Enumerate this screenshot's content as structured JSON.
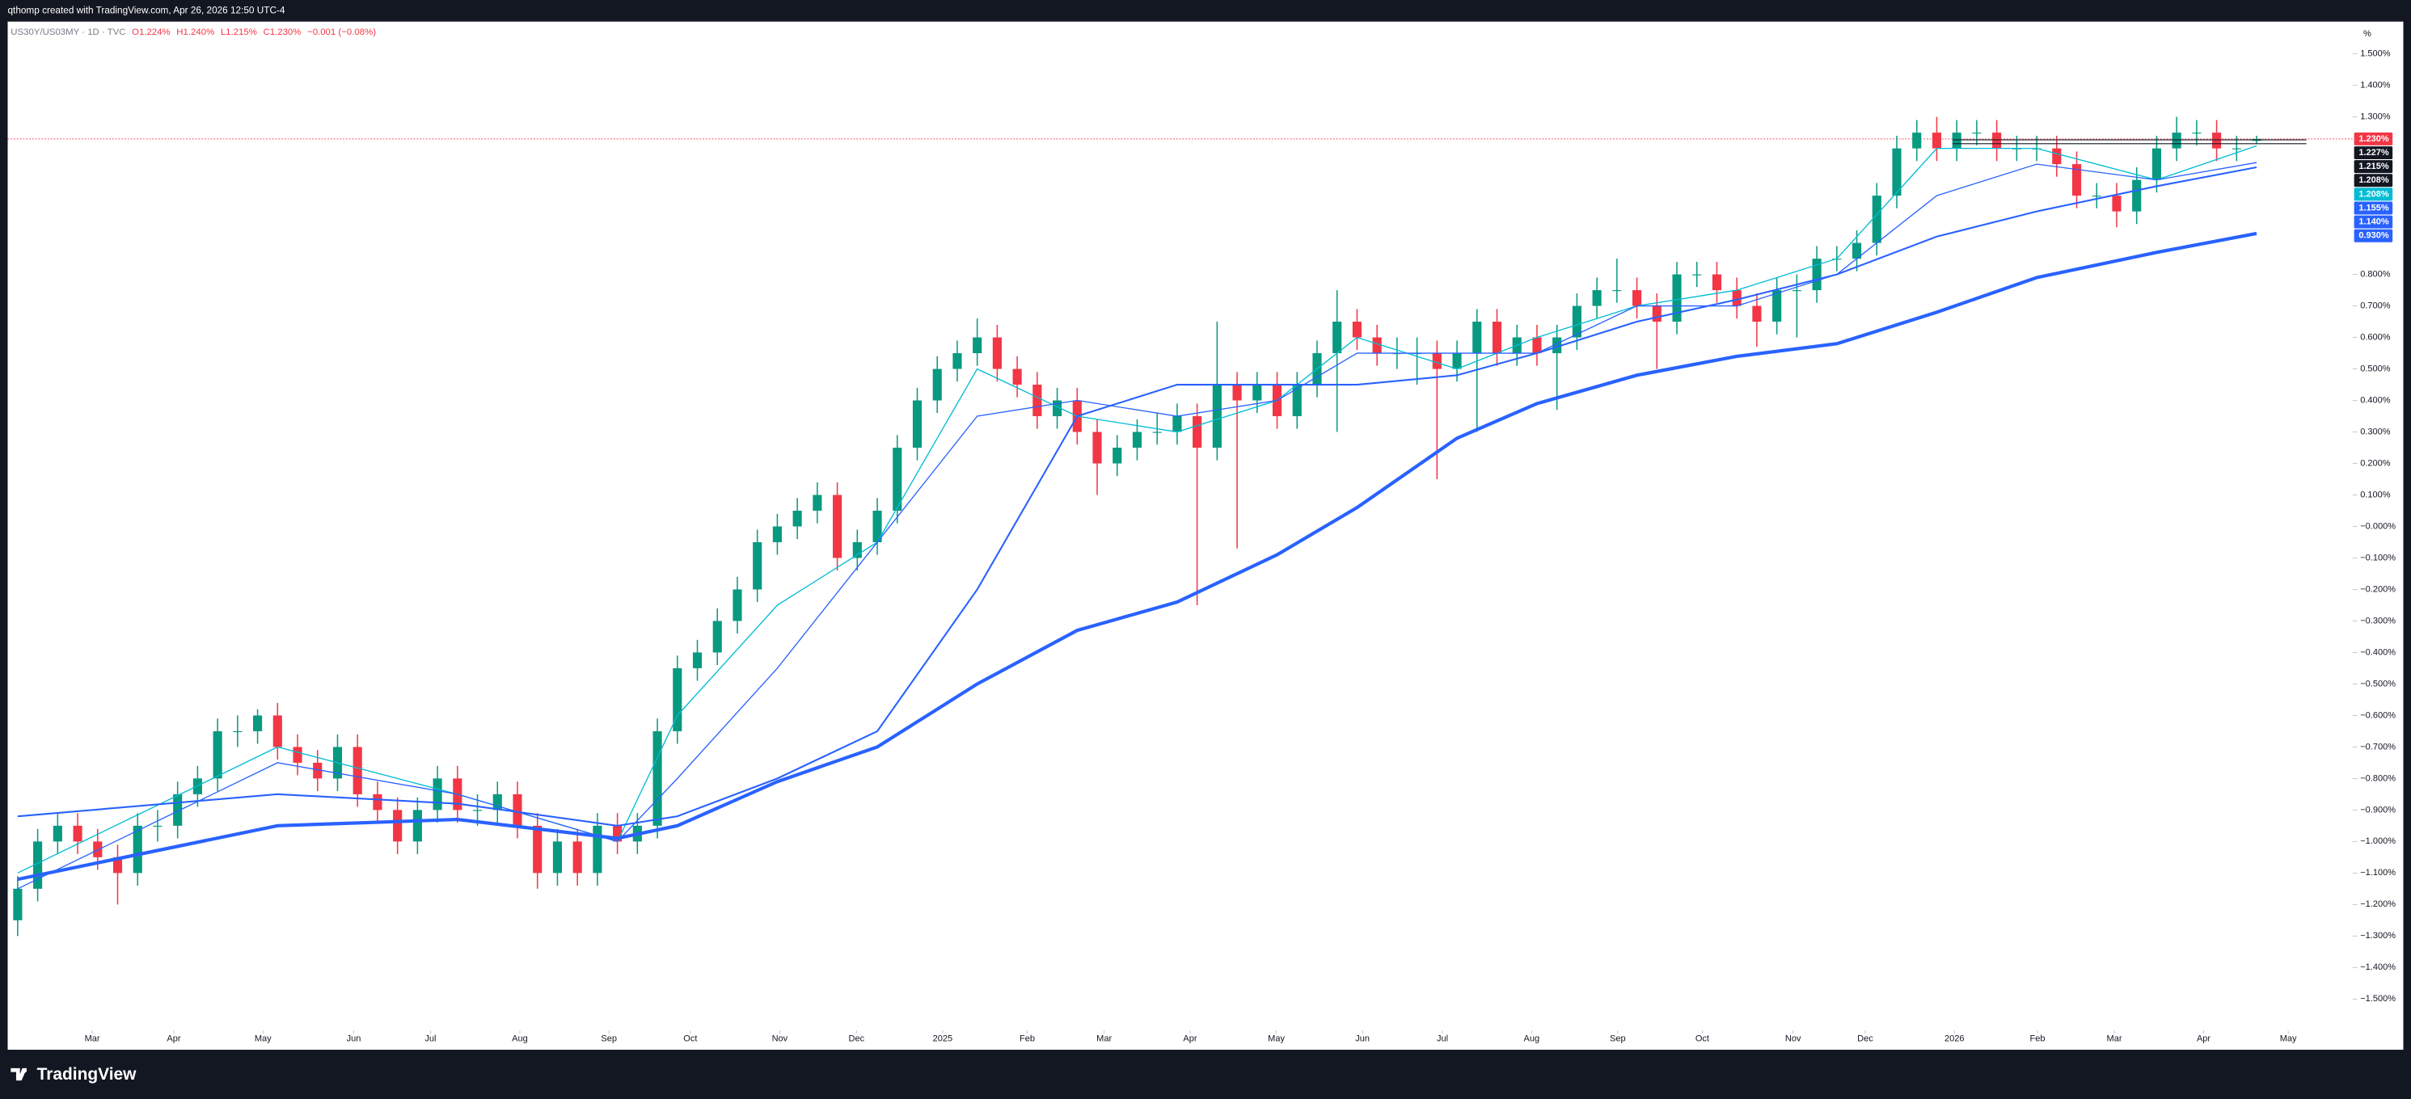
{
  "header": {
    "credit": "qthomp created with TradingView.com, Apr 26, 2026 12:50 UTC-4"
  },
  "footer": {
    "brand": "TradingView"
  },
  "chart_data": {
    "type": "candlestick",
    "symbol": "US30Y/US03MY · 1D · TVC",
    "legend_values": [
      "O1.224%",
      "H1.240%",
      "L1.215%",
      "C1.230%",
      "−0.001 (−0.08%)"
    ],
    "up_color": "#089981",
    "down_color": "#f23645",
    "y_unit": "%",
    "xlim": [
      0,
      117.3
    ],
    "xticks": [
      {
        "value": 4.23,
        "label": "Mar"
      },
      {
        "value": 8.31,
        "label": "Apr"
      },
      {
        "value": 12.77,
        "label": "May"
      },
      {
        "value": 17.31,
        "label": "Jun"
      },
      {
        "value": 21.15,
        "label": "Jul"
      },
      {
        "value": 25.62,
        "label": "Aug"
      },
      {
        "value": 30.08,
        "label": "Sep"
      },
      {
        "value": 34.15,
        "label": "Oct"
      },
      {
        "value": 38.62,
        "label": "Nov"
      },
      {
        "value": 42.46,
        "label": "Dec"
      },
      {
        "value": 46.77,
        "label": "2025"
      },
      {
        "value": 51.0,
        "label": "Feb"
      },
      {
        "value": 54.85,
        "label": "Mar"
      },
      {
        "value": 59.15,
        "label": "Apr"
      },
      {
        "value": 63.46,
        "label": "May"
      },
      {
        "value": 67.77,
        "label": "Jun"
      },
      {
        "value": 71.77,
        "label": "Jul"
      },
      {
        "value": 76.23,
        "label": "Aug"
      },
      {
        "value": 80.54,
        "label": "Sep"
      },
      {
        "value": 84.77,
        "label": "Oct"
      },
      {
        "value": 89.31,
        "label": "Nov"
      },
      {
        "value": 92.92,
        "label": "Dec"
      },
      {
        "value": 97.38,
        "label": "2026"
      },
      {
        "value": 101.54,
        "label": "Feb"
      },
      {
        "value": 105.38,
        "label": "Mar"
      },
      {
        "value": 109.85,
        "label": "Apr"
      },
      {
        "value": 114.08,
        "label": "May"
      }
    ],
    "ylim": [
      -1.6,
      1.6
    ],
    "yticks": [
      {
        "value": 1.5,
        "label": "1.500%"
      },
      {
        "value": 1.4,
        "label": "1.400%"
      },
      {
        "value": 1.3,
        "label": "1.300%"
      },
      {
        "value": 0.8,
        "label": "0.800%"
      },
      {
        "value": 0.7,
        "label": "0.700%"
      },
      {
        "value": 0.6,
        "label": "0.600%"
      },
      {
        "value": 0.5,
        "label": "0.500%"
      },
      {
        "value": 0.4,
        "label": "0.400%"
      },
      {
        "value": 0.3,
        "label": "0.300%"
      },
      {
        "value": 0.2,
        "label": "0.200%"
      },
      {
        "value": 0.1,
        "label": "0.100%"
      },
      {
        "value": 0,
        "label": "−0.000%"
      },
      {
        "value": -0.1,
        "label": "−0.100%"
      },
      {
        "value": -0.2,
        "label": "−0.200%"
      },
      {
        "value": -0.3,
        "label": "−0.300%"
      },
      {
        "value": -0.4,
        "label": "−0.400%"
      },
      {
        "value": -0.5,
        "label": "−0.500%"
      },
      {
        "value": -0.6,
        "label": "−0.600%"
      },
      {
        "value": -0.7,
        "label": "−0.700%"
      },
      {
        "value": -0.8,
        "label": "−0.800%"
      },
      {
        "value": -0.9,
        "label": "−0.900%"
      },
      {
        "value": -1.0,
        "label": "−1.000%"
      },
      {
        "value": -1.1,
        "label": "−1.100%"
      },
      {
        "value": -1.2,
        "label": "−1.200%"
      },
      {
        "value": -1.3,
        "label": "−1.300%"
      },
      {
        "value": -1.4,
        "label": "−1.400%"
      },
      {
        "value": -1.5,
        "label": "−1.500%"
      }
    ],
    "candles": [
      [
        -1.25,
        -1.11,
        -1.3,
        -1.15
      ],
      [
        -1.15,
        -0.96,
        -1.19,
        -1.0
      ],
      [
        -1.0,
        -0.91,
        -1.04,
        -0.95
      ],
      [
        -0.95,
        -0.91,
        -1.04,
        -1.0
      ],
      [
        -1.0,
        -0.96,
        -1.09,
        -1.05
      ],
      [
        -1.05,
        -1.01,
        -1.2,
        -1.1
      ],
      [
        -1.1,
        -0.91,
        -1.14,
        -0.95
      ],
      [
        -0.95,
        -0.9,
        -1.0,
        -0.95
      ],
      [
        -0.95,
        -0.81,
        -0.99,
        -0.85
      ],
      [
        -0.85,
        -0.76,
        -0.89,
        -0.8
      ],
      [
        -0.8,
        -0.61,
        -0.84,
        -0.65
      ],
      [
        -0.65,
        -0.6,
        -0.7,
        -0.65
      ],
      [
        -0.65,
        -0.58,
        -0.69,
        -0.6
      ],
      [
        -0.6,
        -0.56,
        -0.74,
        -0.7
      ],
      [
        -0.7,
        -0.66,
        -0.79,
        -0.75
      ],
      [
        -0.75,
        -0.71,
        -0.84,
        -0.8
      ],
      [
        -0.8,
        -0.66,
        -0.84,
        -0.7
      ],
      [
        -0.7,
        -0.66,
        -0.89,
        -0.85
      ],
      [
        -0.85,
        -0.81,
        -0.94,
        -0.9
      ],
      [
        -0.9,
        -0.86,
        -1.04,
        -1.0
      ],
      [
        -1.0,
        -0.86,
        -1.04,
        -0.9
      ],
      [
        -0.9,
        -0.76,
        -0.94,
        -0.8
      ],
      [
        -0.8,
        -0.76,
        -0.94,
        -0.9
      ],
      [
        -0.9,
        -0.85,
        -0.95,
        -0.9
      ],
      [
        -0.9,
        -0.81,
        -0.94,
        -0.85
      ],
      [
        -0.85,
        -0.81,
        -0.99,
        -0.95
      ],
      [
        -0.95,
        -0.91,
        -1.15,
        -1.1
      ],
      [
        -1.1,
        -0.96,
        -1.14,
        -1.0
      ],
      [
        -1.0,
        -0.96,
        -1.14,
        -1.1
      ],
      [
        -1.1,
        -0.91,
        -1.14,
        -0.95
      ],
      [
        -0.95,
        -0.91,
        -1.04,
        -1.0
      ],
      [
        -1.0,
        -0.91,
        -1.04,
        -0.95
      ],
      [
        -0.95,
        -0.61,
        -0.99,
        -0.65
      ],
      [
        -0.65,
        -0.41,
        -0.69,
        -0.45
      ],
      [
        -0.45,
        -0.36,
        -0.49,
        -0.4
      ],
      [
        -0.4,
        -0.26,
        -0.44,
        -0.3
      ],
      [
        -0.3,
        -0.16,
        -0.34,
        -0.2
      ],
      [
        -0.2,
        -0.01,
        -0.24,
        -0.05
      ],
      [
        -0.05,
        0.04,
        -0.09,
        0.0
      ],
      [
        0.0,
        0.09,
        -0.04,
        0.05
      ],
      [
        0.05,
        0.14,
        0.01,
        0.1
      ],
      [
        0.1,
        0.14,
        -0.14,
        -0.1
      ],
      [
        -0.1,
        -0.01,
        -0.14,
        -0.05
      ],
      [
        -0.05,
        0.09,
        -0.09,
        0.05
      ],
      [
        0.05,
        0.29,
        0.01,
        0.25
      ],
      [
        0.25,
        0.44,
        0.21,
        0.4
      ],
      [
        0.4,
        0.54,
        0.36,
        0.5
      ],
      [
        0.5,
        0.59,
        0.46,
        0.55
      ],
      [
        0.55,
        0.66,
        0.51,
        0.6
      ],
      [
        0.6,
        0.64,
        0.46,
        0.5
      ],
      [
        0.5,
        0.54,
        0.41,
        0.45
      ],
      [
        0.45,
        0.49,
        0.31,
        0.35
      ],
      [
        0.35,
        0.44,
        0.31,
        0.4
      ],
      [
        0.4,
        0.44,
        0.26,
        0.3
      ],
      [
        0.3,
        0.34,
        0.1,
        0.2
      ],
      [
        0.2,
        0.29,
        0.16,
        0.25
      ],
      [
        0.25,
        0.34,
        0.21,
        0.3
      ],
      [
        0.3,
        0.36,
        0.26,
        0.3
      ],
      [
        0.3,
        0.39,
        0.26,
        0.35
      ],
      [
        0.35,
        0.39,
        -0.25,
        0.25
      ],
      [
        0.25,
        0.65,
        0.21,
        0.45
      ],
      [
        0.45,
        0.49,
        -0.07,
        0.4
      ],
      [
        0.4,
        0.49,
        0.36,
        0.45
      ],
      [
        0.45,
        0.49,
        0.31,
        0.35
      ],
      [
        0.35,
        0.49,
        0.31,
        0.45
      ],
      [
        0.45,
        0.59,
        0.41,
        0.55
      ],
      [
        0.55,
        0.75,
        0.3,
        0.65
      ],
      [
        0.65,
        0.69,
        0.56,
        0.6
      ],
      [
        0.6,
        0.64,
        0.51,
        0.55
      ],
      [
        0.55,
        0.6,
        0.5,
        0.55
      ],
      [
        0.55,
        0.6,
        0.45,
        0.55
      ],
      [
        0.55,
        0.59,
        0.15,
        0.5
      ],
      [
        0.5,
        0.59,
        0.46,
        0.55
      ],
      [
        0.55,
        0.69,
        0.3,
        0.65
      ],
      [
        0.65,
        0.69,
        0.51,
        0.55
      ],
      [
        0.55,
        0.64,
        0.51,
        0.6
      ],
      [
        0.6,
        0.64,
        0.51,
        0.55
      ],
      [
        0.55,
        0.64,
        0.37,
        0.6
      ],
      [
        0.6,
        0.74,
        0.56,
        0.7
      ],
      [
        0.7,
        0.79,
        0.66,
        0.75
      ],
      [
        0.75,
        0.85,
        0.71,
        0.75
      ],
      [
        0.75,
        0.79,
        0.66,
        0.7
      ],
      [
        0.7,
        0.74,
        0.5,
        0.65
      ],
      [
        0.65,
        0.84,
        0.61,
        0.8
      ],
      [
        0.8,
        0.84,
        0.76,
        0.8
      ],
      [
        0.8,
        0.84,
        0.71,
        0.75
      ],
      [
        0.75,
        0.79,
        0.66,
        0.7
      ],
      [
        0.7,
        0.74,
        0.57,
        0.65
      ],
      [
        0.65,
        0.79,
        0.61,
        0.75
      ],
      [
        0.75,
        0.8,
        0.6,
        0.75
      ],
      [
        0.75,
        0.89,
        0.71,
        0.85
      ],
      [
        0.85,
        0.89,
        0.81,
        0.85
      ],
      [
        0.85,
        0.94,
        0.81,
        0.9
      ],
      [
        0.9,
        1.09,
        0.86,
        1.05
      ],
      [
        1.05,
        1.24,
        1.01,
        1.2
      ],
      [
        1.2,
        1.29,
        1.16,
        1.25
      ],
      [
        1.25,
        1.3,
        1.16,
        1.2
      ],
      [
        1.2,
        1.29,
        1.16,
        1.25
      ],
      [
        1.25,
        1.29,
        1.21,
        1.25
      ],
      [
        1.25,
        1.29,
        1.16,
        1.2
      ],
      [
        1.2,
        1.24,
        1.16,
        1.2
      ],
      [
        1.2,
        1.24,
        1.16,
        1.2
      ],
      [
        1.2,
        1.24,
        1.11,
        1.15
      ],
      [
        1.15,
        1.19,
        1.01,
        1.05
      ],
      [
        1.05,
        1.09,
        1.01,
        1.05
      ],
      [
        1.05,
        1.09,
        0.95,
        1.0
      ],
      [
        1.0,
        1.14,
        0.96,
        1.1
      ],
      [
        1.1,
        1.24,
        1.06,
        1.2
      ],
      [
        1.2,
        1.3,
        1.16,
        1.25
      ],
      [
        1.25,
        1.29,
        1.21,
        1.25
      ],
      [
        1.25,
        1.29,
        1.16,
        1.2
      ],
      [
        1.2,
        1.24,
        1.16,
        1.2
      ],
      [
        1.224,
        1.24,
        1.215,
        1.23
      ]
    ],
    "series": [
      {
        "color": "#00bcd4",
        "x": [
          0,
          13,
          22,
          30,
          33,
          38,
          43,
          48,
          53,
          58,
          63,
          67,
          72,
          76,
          81,
          86,
          91,
          96,
          101,
          107,
          112
        ],
        "values": [
          -1.1,
          -0.7,
          -0.85,
          -1.0,
          -0.6,
          -0.25,
          -0.05,
          0.5,
          0.35,
          0.3,
          0.4,
          0.6,
          0.5,
          0.6,
          0.7,
          0.75,
          0.85,
          1.2,
          1.2,
          1.1,
          1.208
        ]
      },
      {
        "color": "#2962ff",
        "x": [
          0,
          13,
          22,
          30,
          33,
          38,
          43,
          48,
          53,
          58,
          63,
          67,
          72,
          76,
          81,
          86,
          91,
          96,
          101,
          107,
          112
        ],
        "values": [
          -1.15,
          -0.75,
          -0.85,
          -1.0,
          -0.8,
          -0.45,
          -0.05,
          0.35,
          0.4,
          0.35,
          0.4,
          0.55,
          0.55,
          0.55,
          0.7,
          0.7,
          0.8,
          1.05,
          1.15,
          1.1,
          1.155
        ]
      },
      {
        "color": "#2962ff",
        "x": [
          0,
          13,
          22,
          30,
          33,
          38,
          43,
          48,
          53,
          58,
          63,
          67,
          72,
          76,
          81,
          86,
          91,
          96,
          101,
          107,
          112
        ],
        "values": [
          -0.92,
          -0.85,
          -0.88,
          -0.95,
          -0.92,
          -0.8,
          -0.65,
          -0.2,
          0.35,
          0.45,
          0.45,
          0.45,
          0.48,
          0.55,
          0.65,
          0.72,
          0.8,
          0.92,
          1.0,
          1.08,
          1.14
        ]
      },
      {
        "color": "#2962ff",
        "x": [
          0,
          13,
          22,
          30,
          33,
          38,
          43,
          48,
          53,
          58,
          63,
          67,
          72,
          76,
          81,
          86,
          91,
          96,
          101,
          107,
          112
        ],
        "values": [
          -1.12,
          -0.95,
          -0.93,
          -0.99,
          -0.95,
          -0.81,
          -0.7,
          -0.5,
          -0.33,
          -0.24,
          -0.09,
          0.06,
          0.28,
          0.39,
          0.48,
          0.54,
          0.58,
          0.68,
          0.79,
          0.87,
          0.93
        ]
      }
    ],
    "price_labels": [
      {
        "value": 1.23,
        "label": "1.230%",
        "color": "#f23645"
      },
      {
        "value": 1.227,
        "label": "1.227%",
        "color": "#131722"
      },
      {
        "value": 1.215,
        "label": "1.215%",
        "color": "#131722"
      },
      {
        "value": 1.208,
        "label": "1.208%",
        "color": "#131722"
      },
      {
        "value": 1.208,
        "label": "1.208%",
        "color": "#00bcd4"
      },
      {
        "value": 1.155,
        "label": "1.155%",
        "color": "#2962ff"
      },
      {
        "value": 1.14,
        "label": "1.140%",
        "color": "#2962ff"
      },
      {
        "value": 0.93,
        "label": "0.930%",
        "color": "#2962ff"
      }
    ]
  }
}
